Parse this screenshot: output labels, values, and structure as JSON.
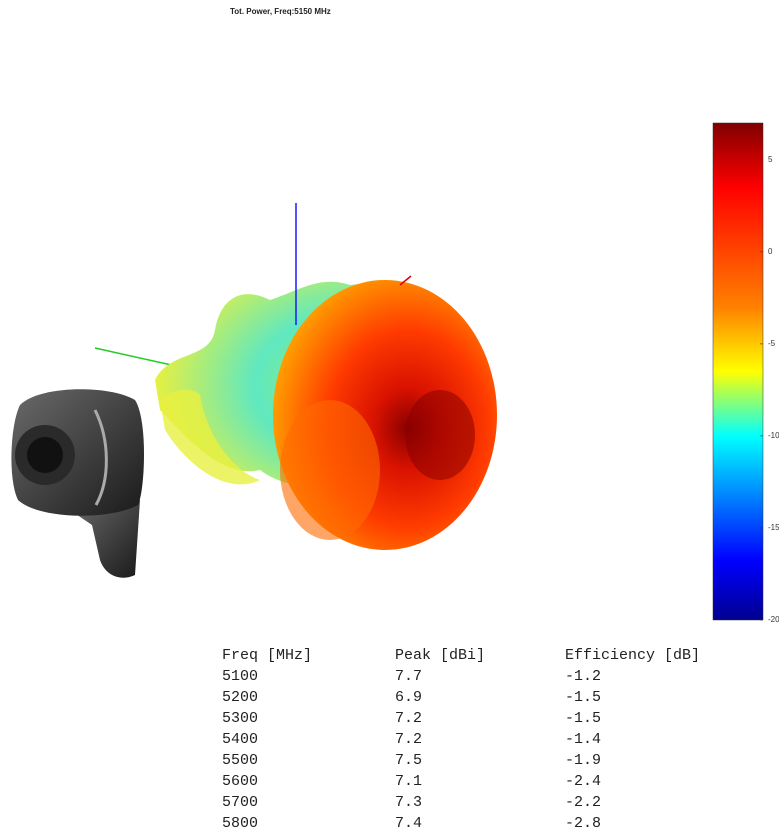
{
  "title": "Tot. Power, Freq:5150 MHz",
  "colorbar": {
    "lim": [
      -20,
      7
    ],
    "ticks": [
      5,
      0,
      -5,
      -10,
      -15,
      -20
    ]
  },
  "table": {
    "header": [
      "Freq [MHz]",
      "Peak [dBi]",
      "Efficiency [dB]"
    ],
    "rows": [
      [
        "5100",
        "7.7",
        "-1.2"
      ],
      [
        "5200",
        "6.9",
        "-1.5"
      ],
      [
        "5300",
        "7.2",
        "-1.5"
      ],
      [
        "5400",
        "7.2",
        "-1.4"
      ],
      [
        "5500",
        "7.5",
        "-1.9"
      ],
      [
        "5600",
        "7.1",
        "-2.4"
      ],
      [
        "5700",
        "7.3",
        "-2.2"
      ],
      [
        "5800",
        "7.4",
        "-2.8"
      ]
    ]
  }
}
